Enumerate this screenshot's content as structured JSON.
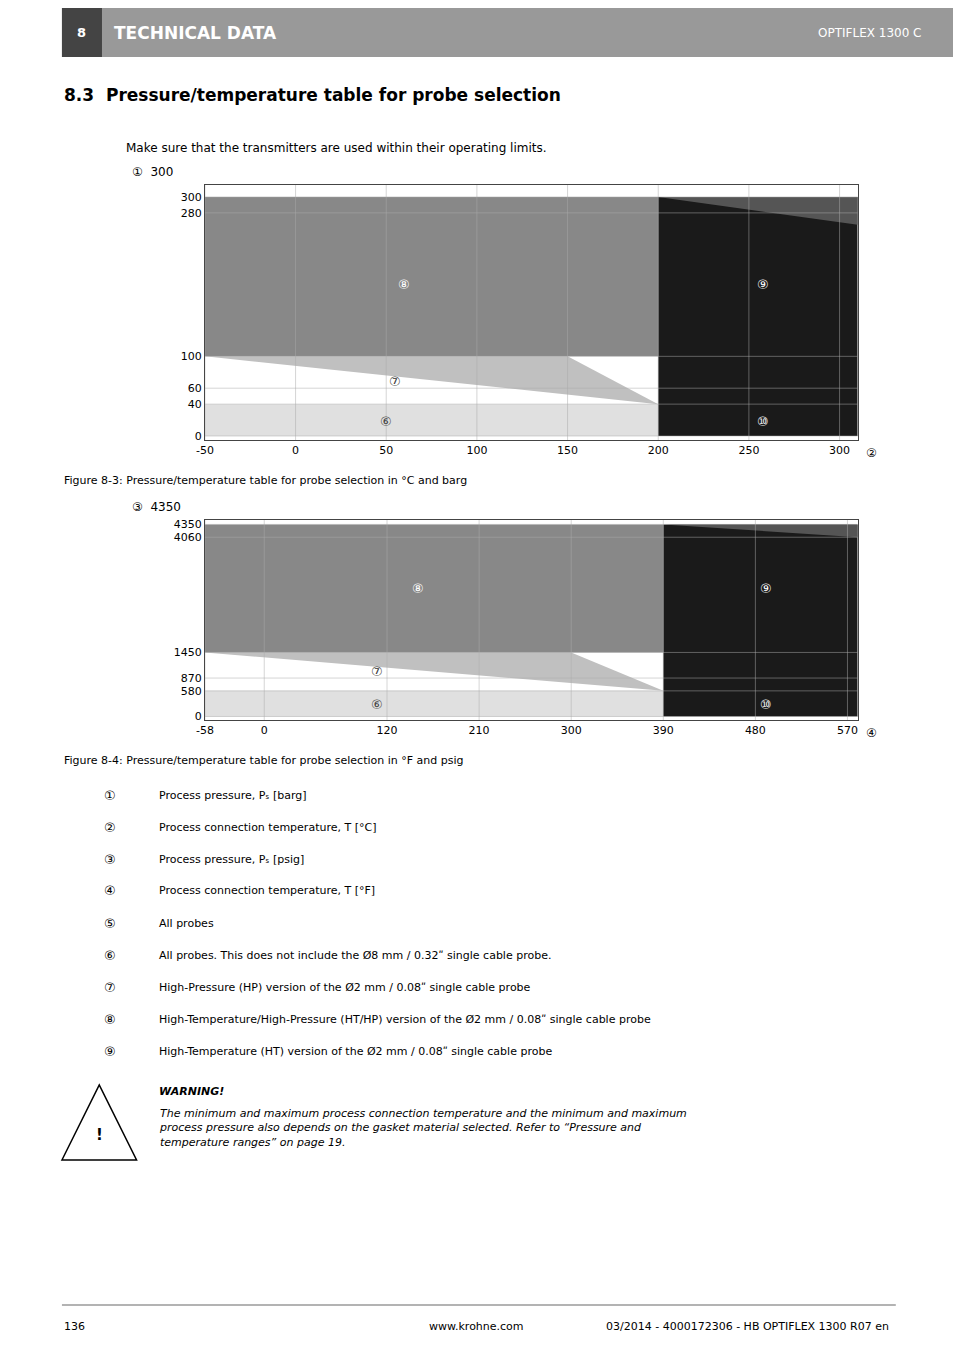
{
  "title": "8.3  Pressure/temperature table for probe selection",
  "subtitle": "Make sure that the transmitters are used within their operating limits.",
  "annotations": [
    [
      "8",
      "TECHNICAL DATA",
      "OPTIFLEX 1300 C"
    ],
    [
      [
        "①",
        "Process pressure, Pₛ [barg]"
      ],
      [
        "②",
        "Process connection temperature, T [°C]"
      ],
      [
        "③",
        "Process pressure, Pₛ [psig]"
      ],
      [
        "④",
        "Process connection temperature, T [°F]"
      ],
      [
        "⑤",
        "All probes"
      ],
      [
        "⑥",
        "All probes. This does not include the Ø8 mm / 0.32ʺ single cable probe."
      ],
      [
        "⑦",
        "High-Pressure (HP) version of the Ø2 mm / 0.08ʺ single cable probe"
      ],
      [
        "⑧",
        "High-Temperature/High-Pressure (HT/HP) version of the Ø2 mm / 0.08ʺ single cable probe"
      ],
      [
        "⑨",
        "High-Temperature (HT) version of the Ø2 mm / 0.08ʺ single cable probe"
      ]
    ],
    [
      "!",
      "WARNING!",
      "The minimum and maximum process connection temperature and the minimum and maximum\nprocess pressure also depends on the gasket material selected. Refer to “Pressure and\ntemperature ranges” on page 19."
    ],
    [
      "136",
      "www.krohne.com",
      "03/2014 - 4000172306 - HB OPTIFLEX 1300 R07 en"
    ]
  ],
  "chart_data": [
    {
      "type": "area",
      "title": "Figure 8-3: Pressure/temperature table for probe selection in °C and barg",
      "xlim": [
        -50,
        310
      ],
      "ylim": [
        -5,
        315
      ],
      "xticks": [
        -50,
        0,
        50,
        100,
        150,
        200,
        250,
        300
      ],
      "yticks": [
        0,
        40,
        60,
        100,
        280,
        300
      ],
      "grid": true,
      "series": [
        {
          "color": "#e0e0e0",
          "x": [
            -50,
            200,
            200,
            -50
          ],
          "values": [
            0,
            0,
            40,
            40
          ]
        },
        {
          "color": "#c0c0c0",
          "x": [
            -50,
            150,
            200,
            200,
            -50
          ],
          "values": [
            100,
            100,
            40,
            40,
            100
          ]
        },
        {
          "color": "#888888",
          "x": [
            -50,
            200,
            200,
            -50
          ],
          "values": [
            100,
            100,
            300,
            300
          ]
        },
        {
          "color": "#1a1a1a",
          "x": [
            200,
            310,
            310,
            200
          ],
          "values": [
            0,
            0,
            300,
            300
          ]
        },
        {
          "color": "#555555",
          "x": [
            200,
            310,
            310,
            200
          ],
          "values": [
            300,
            265,
            300,
            300
          ]
        }
      ],
      "annotations": [
        {
          "text": "①  300"
        },
        {
          "text": "②"
        },
        {
          "text": "⑧",
          "x": 60,
          "y": 190,
          "color": "#ffffff"
        },
        {
          "text": "⑨",
          "x": 258,
          "y": 190,
          "color": "#ffffff"
        },
        {
          "text": "⑦",
          "x": 55,
          "y": 68,
          "color": "#333333"
        },
        {
          "text": "⑥",
          "x": 50,
          "y": 18,
          "color": "#444444"
        },
        {
          "text": "⑩",
          "x": 258,
          "y": 18,
          "color": "#ffffff"
        }
      ]
    },
    {
      "type": "area",
      "title": "Figure 8-4: Pressure/temperature table for probe selection in °F and psig",
      "xlim": [
        -58,
        580
      ],
      "ylim": [
        -80,
        4450
      ],
      "xticks": [
        -58,
        0,
        120,
        210,
        300,
        390,
        480,
        570
      ],
      "yticks": [
        0,
        580,
        870,
        1450,
        4060,
        4350
      ],
      "grid": true,
      "series": [
        {
          "color": "#e0e0e0",
          "x": [
            -58,
            390,
            390,
            -58
          ],
          "values": [
            0,
            0,
            580,
            580
          ]
        },
        {
          "color": "#c0c0c0",
          "x": [
            -58,
            300,
            390,
            390,
            -58
          ],
          "values": [
            1450,
            1450,
            580,
            580,
            1450
          ]
        },
        {
          "color": "#888888",
          "x": [
            -58,
            390,
            390,
            -58
          ],
          "values": [
            1450,
            1450,
            4350,
            4350
          ]
        },
        {
          "color": "#1a1a1a",
          "x": [
            390,
            580,
            580,
            390
          ],
          "values": [
            0,
            0,
            4350,
            4350
          ]
        },
        {
          "color": "#555555",
          "x": [
            390,
            580,
            580,
            390
          ],
          "values": [
            4350,
            4060,
            4350,
            4350
          ]
        }
      ],
      "annotations": [
        {
          "text": "③  4350"
        },
        {
          "text": "④"
        },
        {
          "text": "⑧",
          "x": 150,
          "y": 2900,
          "color": "#ffffff"
        },
        {
          "text": "⑨",
          "x": 490,
          "y": 2900,
          "color": "#ffffff"
        },
        {
          "text": "⑦",
          "x": 110,
          "y": 1010,
          "color": "#333333"
        },
        {
          "text": "⑥",
          "x": 110,
          "y": 270,
          "color": "#444444"
        },
        {
          "text": "⑩",
          "x": 490,
          "y": 270,
          "color": "#ffffff"
        }
      ]
    }
  ]
}
